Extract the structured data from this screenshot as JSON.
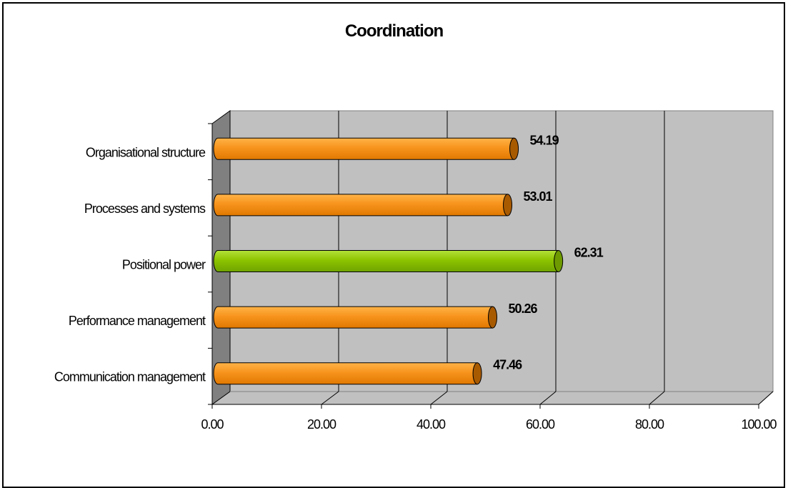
{
  "chart_data": {
    "type": "bar",
    "orientation": "horizontal",
    "title": "Coordination",
    "categories": [
      "Communication management",
      "Performance management",
      "Positional power",
      "Processes and systems",
      "Organisational structure"
    ],
    "values": [
      47.46,
      50.26,
      62.31,
      53.01,
      54.19
    ],
    "value_labels": [
      "47.46",
      "50.26",
      "62.31",
      "53.01",
      "54.19"
    ],
    "highlight": "Positional power",
    "xlim": [
      0,
      100
    ],
    "xticks": [
      "0.00",
      "20.00",
      "40.00",
      "60.00",
      "80.00",
      "100.00"
    ],
    "grid": true,
    "colors": {
      "bar": "#F7941D",
      "highlight": "#8DC400",
      "wall": "#C0C0C0",
      "side_wall": "#808080"
    }
  }
}
